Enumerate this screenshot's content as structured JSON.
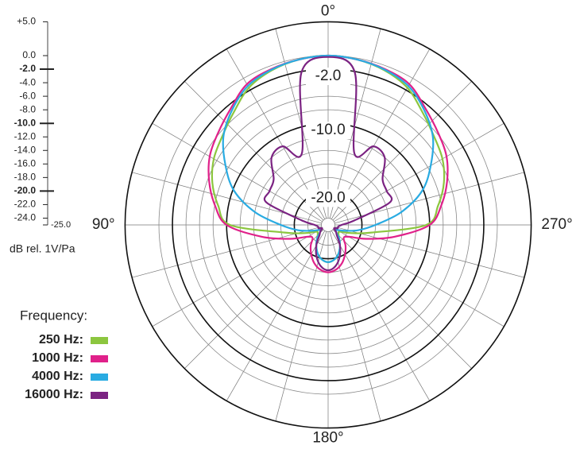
{
  "chart_data": {
    "type": "polar",
    "radial_axis_label": "dB rel. 1V/Pa",
    "rlim": [
      -25,
      5
    ],
    "rticks": [
      {
        "value": 5,
        "label": "+5.0"
      },
      {
        "value": 0,
        "label": "0.0"
      },
      {
        "value": -2,
        "label": "-2.0"
      },
      {
        "value": -4,
        "label": "-4.0"
      },
      {
        "value": -6,
        "label": "-6.0"
      },
      {
        "value": -8,
        "label": "-8.0"
      },
      {
        "value": -10,
        "label": "-10.0"
      },
      {
        "value": -12,
        "label": "-12.0"
      },
      {
        "value": -14,
        "label": "-14.0"
      },
      {
        "value": -16,
        "label": "-16.0"
      },
      {
        "value": -18,
        "label": "-18.0"
      },
      {
        "value": -20,
        "label": "-20.0"
      },
      {
        "value": -22,
        "label": "-22.0"
      },
      {
        "value": -24,
        "label": "-24.0"
      },
      {
        "value": -25,
        "label": "-25.0"
      }
    ],
    "ring_labels": [
      {
        "value": -2,
        "label": "-2.0"
      },
      {
        "value": -10,
        "label": "-10.0"
      },
      {
        "value": -20,
        "label": "-20.0"
      }
    ],
    "angle_ticks": [
      {
        "value": 0,
        "label": "0°"
      },
      {
        "value": 90,
        "label": "90°"
      },
      {
        "value": 180,
        "label": "180°"
      },
      {
        "value": 270,
        "label": "270°"
      }
    ],
    "legend_title": "Frequency:",
    "legend_position": "lower-left",
    "x": [
      0,
      10,
      20,
      30,
      40,
      50,
      60,
      70,
      80,
      90,
      100,
      110,
      120,
      130,
      140,
      150,
      160,
      170,
      180,
      190,
      200,
      210,
      220,
      230,
      240,
      250,
      260,
      270,
      280,
      290,
      300,
      310,
      320,
      330,
      340,
      350
    ],
    "series": [
      {
        "name": "250 Hz:",
        "color": "#8cc63f",
        "values": [
          0,
          -0.2,
          -0.7,
          -1.6,
          -3.3,
          -4.6,
          -5.5,
          -6.8,
          -8.5,
          -10.5,
          -18.5,
          -21.5,
          -23,
          -23,
          -22.5,
          -21.5,
          -20.5,
          -19.8,
          -19.5,
          -19.8,
          -20.5,
          -21.5,
          -22.5,
          -23,
          -23,
          -21.5,
          -18.5,
          -10.5,
          -8.5,
          -6.8,
          -5.5,
          -4.6,
          -3.3,
          -1.6,
          -0.7,
          -0.2
        ]
      },
      {
        "name": "1000 Hz:",
        "color": "#e0218a",
        "values": [
          0,
          -0.2,
          -0.5,
          -1.0,
          -2.6,
          -3.8,
          -4.8,
          -6.3,
          -8,
          -10,
          -15,
          -19,
          -21.5,
          -22,
          -21,
          -20,
          -19,
          -18.3,
          -18,
          -18.3,
          -19,
          -20,
          -21,
          -22,
          -21.5,
          -19,
          -15,
          -10,
          -8,
          -6.3,
          -4.8,
          -3.8,
          -2.6,
          -1.0,
          -0.5,
          -0.2
        ]
      },
      {
        "name": "4000 Hz:",
        "color": "#29abe2",
        "values": [
          0,
          -0.2,
          -0.6,
          -1.3,
          -2.9,
          -4.8,
          -7.5,
          -10.2,
          -14,
          -18,
          -20.5,
          -22.5,
          -23.5,
          -23.5,
          -22.5,
          -21.5,
          -20.5,
          -19.8,
          -19.5,
          -19.8,
          -20.5,
          -21.5,
          -22.5,
          -23.5,
          -23.5,
          -22.5,
          -20.5,
          -18,
          -14,
          -10.2,
          -7.5,
          -4.8,
          -2.9,
          -1.3,
          -0.6,
          -0.2
        ]
      },
      {
        "name": "16000 Hz:",
        "color": "#7b2382",
        "values": [
          -0.2,
          -2.2,
          -13.7,
          -11.6,
          -12,
          -14.5,
          -15,
          -15.3,
          -21,
          -23,
          -23.5,
          -23.5,
          -24,
          -23.5,
          -23,
          -21.5,
          -20,
          -18.8,
          -18.3,
          -18.8,
          -20,
          -21.5,
          -23,
          -23.5,
          -24,
          -23.5,
          -23.5,
          -23,
          -21,
          -15.3,
          -15,
          -14.5,
          -12,
          -11.6,
          -13.7,
          -2.2
        ]
      }
    ]
  }
}
